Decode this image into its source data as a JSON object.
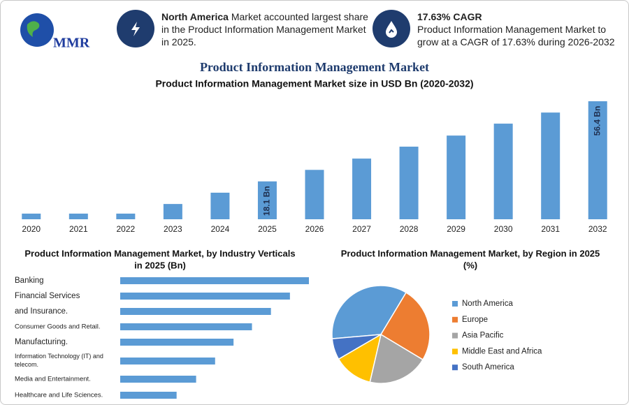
{
  "header": {
    "logo": "MMR",
    "cards": [
      {
        "bold": "North America",
        "text": " Market accounted largest share in the Product Information Management Market in 2025."
      },
      {
        "bold": "17.63% CAGR",
        "text": "Product Information Management Market to grow at a CAGR of 17.63% during 2026-2032"
      }
    ]
  },
  "title": "Product Information Management Market",
  "chart_data": [
    {
      "type": "bar",
      "title": "Product Information Management Market size in USD Bn (2020-2032)",
      "categories": [
        "2020",
        "2021",
        "2022",
        "2023",
        "2024",
        "2025",
        "2026",
        "2027",
        "2028",
        "2029",
        "2030",
        "2031",
        "2032"
      ],
      "values": [
        2.7,
        2.7,
        2.7,
        7.3,
        12.7,
        18.1,
        23.6,
        29,
        34.7,
        40,
        45.7,
        51,
        56.4
      ],
      "value_labels": [
        null,
        null,
        null,
        null,
        null,
        "18.1 Bn",
        null,
        null,
        null,
        null,
        null,
        null,
        "56.4 Bn"
      ],
      "color": "#5b9bd5"
    },
    {
      "type": "hbar",
      "title": [
        "Product Information Management Market, by Industry Verticals",
        "in 2025 (Bn)"
      ],
      "categories": [
        "Banking",
        "Financial Services",
        "and Insurance.",
        "Consumer Goods and Retail.",
        "Manufacturing.",
        "Information Technology (IT) and telecom.",
        "Media and Entertainment.",
        "Healthcare and Life Sciences."
      ],
      "values": [
        3.48,
        3.13,
        2.78,
        2.43,
        2.09,
        1.75,
        1.4,
        1.04
      ],
      "color": "#5b9bd5"
    },
    {
      "type": "pie",
      "title": [
        "Product Information Management Market, by Region in 2025",
        "(%)"
      ],
      "categories": [
        "North America",
        "Europe",
        "Asia Pacific",
        "Middle East and Africa",
        "South America"
      ],
      "values": [
        35,
        25,
        20,
        13,
        7
      ],
      "colors": [
        "#5b9bd5",
        "#ed7d31",
        "#a5a5a5",
        "#ffc000",
        "#4472c4"
      ]
    }
  ]
}
